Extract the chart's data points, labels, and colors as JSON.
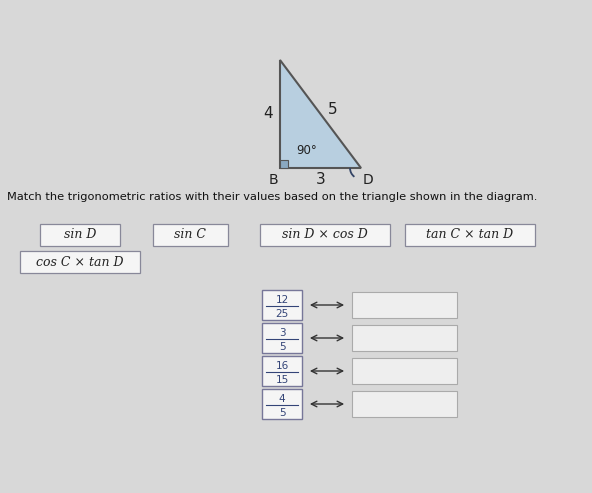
{
  "bg_color": "#d8d8d8",
  "title_text": "Match the trigonometric ratios with their values based on the triangle shown in the diagram.",
  "triangle": {
    "label_BD": "3",
    "label_BC": "4",
    "label_CD": "5",
    "angle_B_label": "90°",
    "label_B": "B",
    "label_D": "D",
    "fill_color": "#b8cfe0",
    "sq_color": "#8aa8c0",
    "outline_color": "#555555"
  },
  "drag_items": [
    "sin D",
    "sin C",
    "sin D × cos D",
    "tan C × tan D",
    "cos C × tan D"
  ],
  "frac_display": [
    {
      "num": "12",
      "den": "25"
    },
    {
      "num": "3",
      "den": "5"
    },
    {
      "num": "16",
      "den": "15"
    },
    {
      "num": "4",
      "den": "5"
    }
  ],
  "box_facecolor": "#f5f5f5",
  "box_edgecolor": "#888899",
  "ans_facecolor": "#eeeeee",
  "ans_edgecolor": "#aaaaaa",
  "frac_facecolor": "#f5f5f5",
  "frac_edgecolor": "#777799",
  "frac_textcolor": "#334477",
  "arrow_color": "#333333",
  "text_color": "#111111"
}
